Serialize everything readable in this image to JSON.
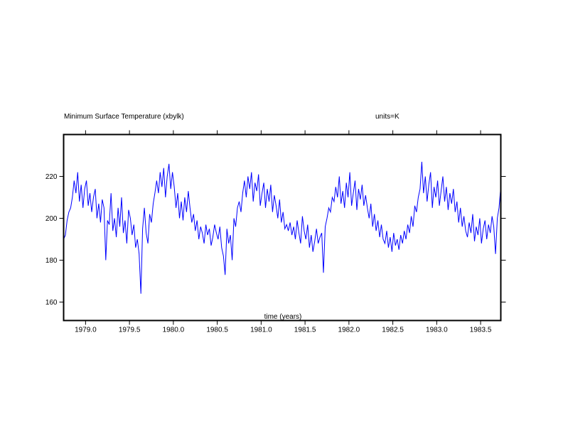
{
  "chart_data": {
    "type": "line",
    "title": "Minimum Surface Temperature (xbylk)",
    "units_label": "units=K",
    "xlabel": "time (years)",
    "ylabel": "",
    "xlim": [
      1978.75,
      1983.73
    ],
    "ylim": [
      151.2,
      240
    ],
    "x_ticks": [
      1979.0,
      1979.5,
      1980.0,
      1980.5,
      1981.0,
      1981.5,
      1982.0,
      1982.5,
      1983.0,
      1983.5
    ],
    "x_tick_labels": [
      "1979.0",
      "1979.5",
      "1980.0",
      "1980.5",
      "1981.0",
      "1981.5",
      "1982.0",
      "1982.5",
      "1983.0",
      "1983.5"
    ],
    "y_ticks": [
      160,
      180,
      200,
      220
    ],
    "y_tick_labels": [
      "160",
      "180",
      "200",
      "220"
    ],
    "grid": false,
    "series": [
      {
        "name": "Minimum Surface Temperature",
        "color": "#0000ff",
        "x_start": 1978.75,
        "x_step": 0.02,
        "values": [
          190,
          192,
          199,
          203,
          205,
          210,
          218,
          212,
          222,
          208,
          216,
          205,
          214,
          218,
          206,
          212,
          203,
          210,
          214,
          200,
          207,
          198,
          209,
          205,
          180,
          199,
          197,
          212,
          194,
          200,
          191,
          205,
          196,
          210,
          193,
          199,
          188,
          204,
          200,
          192,
          197,
          186,
          190,
          183,
          164,
          195,
          205,
          193,
          188,
          202,
          198,
          207,
          212,
          218,
          212,
          222,
          215,
          224,
          210,
          220,
          226,
          214,
          222,
          215,
          205,
          212,
          200,
          208,
          199,
          210,
          203,
          213,
          205,
          198,
          202,
          194,
          199,
          190,
          196,
          193,
          188,
          197,
          192,
          195,
          187,
          191,
          197,
          193,
          190,
          196,
          186,
          182,
          173,
          195,
          188,
          192,
          180,
          200,
          196,
          205,
          208,
          203,
          212,
          218,
          210,
          220,
          214,
          222,
          208,
          217,
          213,
          221,
          206,
          212,
          217,
          205,
          214,
          208,
          216,
          203,
          211,
          206,
          200,
          209,
          198,
          203,
          195,
          197,
          194,
          198,
          192,
          196,
          190,
          199,
          193,
          188,
          201,
          194,
          190,
          197,
          186,
          192,
          184,
          189,
          195,
          188,
          191,
          193,
          174,
          196,
          200,
          205,
          203,
          210,
          208,
          215,
          210,
          220,
          207,
          213,
          205,
          217,
          210,
          222,
          206,
          212,
          218,
          204,
          214,
          209,
          216,
          206,
          211,
          205,
          200,
          207,
          196,
          202,
          194,
          199,
          191,
          197,
          190,
          188,
          194,
          186,
          191,
          184,
          193,
          187,
          190,
          185,
          192,
          188,
          194,
          190,
          197,
          193,
          201,
          196,
          206,
          203,
          210,
          214,
          227,
          212,
          220,
          208,
          216,
          222,
          205,
          215,
          210,
          218,
          206,
          213,
          220,
          208,
          215,
          204,
          212,
          207,
          214,
          203,
          208,
          198,
          205,
          196,
          201,
          194,
          191,
          198,
          193,
          202,
          189,
          196,
          192,
          200,
          188,
          195,
          199,
          190,
          197,
          193,
          201,
          196,
          183,
          200,
          205,
          215
        ]
      }
    ]
  }
}
